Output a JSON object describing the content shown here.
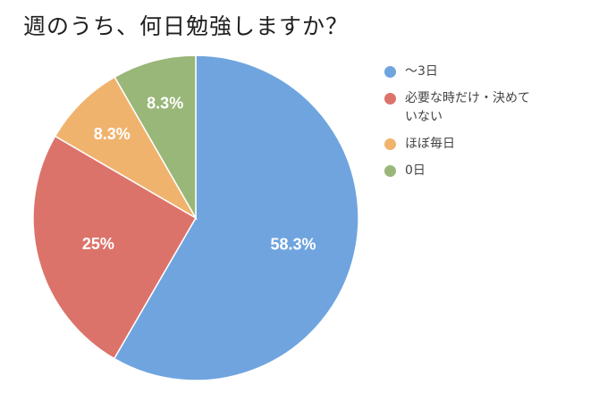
{
  "title": "週のうち、何日勉強しますか？",
  "chart_data": {
    "type": "pie",
    "title": "週のうち、何日勉強しますか？",
    "slices": [
      {
        "name": "〜3日",
        "value": 58.3,
        "label": "58.3%",
        "color": "#6FA4DF"
      },
      {
        "name": "必要な時だけ・決めていない",
        "value": 25.0,
        "label": "25%",
        "color": "#DC736A"
      },
      {
        "name": "ほぼ毎日",
        "value": 8.3,
        "label": "8.3%",
        "color": "#F0B36E"
      },
      {
        "name": "0日",
        "value": 8.3,
        "label": "8.3%",
        "color": "#99B778"
      }
    ],
    "legend_position": "right"
  },
  "legend": {
    "items": [
      {
        "label": "〜3日",
        "color": "#6FA4DF"
      },
      {
        "label": "必要な時だけ・決めていない",
        "color": "#DC736A"
      },
      {
        "label": "ほぼ毎日",
        "color": "#F0B36E"
      },
      {
        "label": "0日",
        "color": "#99B778"
      }
    ]
  }
}
